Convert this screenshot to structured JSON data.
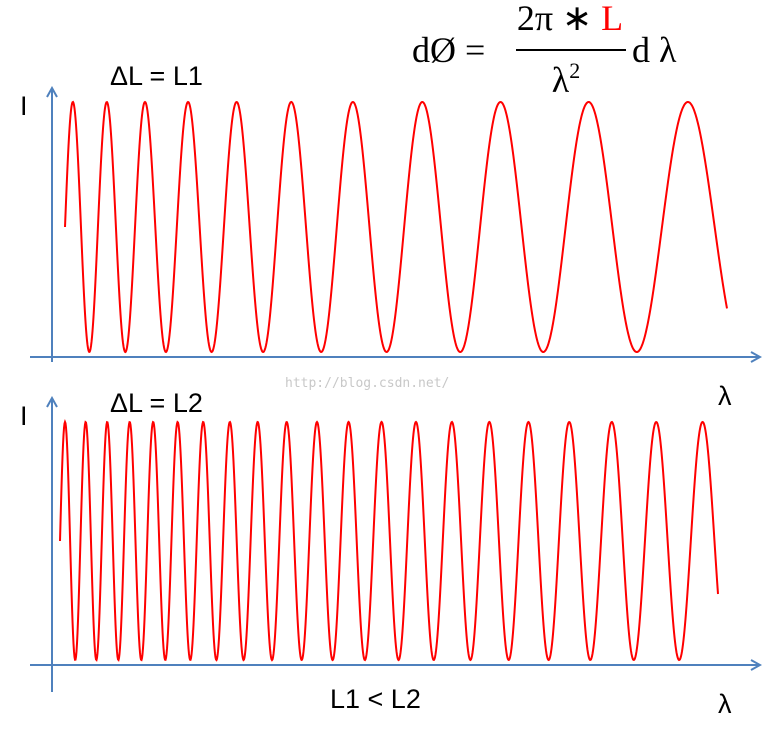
{
  "formula": {
    "lhs": "dØ =",
    "numerator": "2π ∗",
    "numerator_var": "L",
    "denominator": "λ",
    "denominator_exp": "2",
    "rhs": "d λ"
  },
  "top_plot": {
    "label": "ΔL = L1",
    "y_axis": "I",
    "x_axis": "λ"
  },
  "bottom_plot": {
    "label": "ΔL = L2",
    "y_axis": "I",
    "x_axis": "λ"
  },
  "caption": "L1 < L2",
  "watermark": "http://blog.csdn.net/"
}
